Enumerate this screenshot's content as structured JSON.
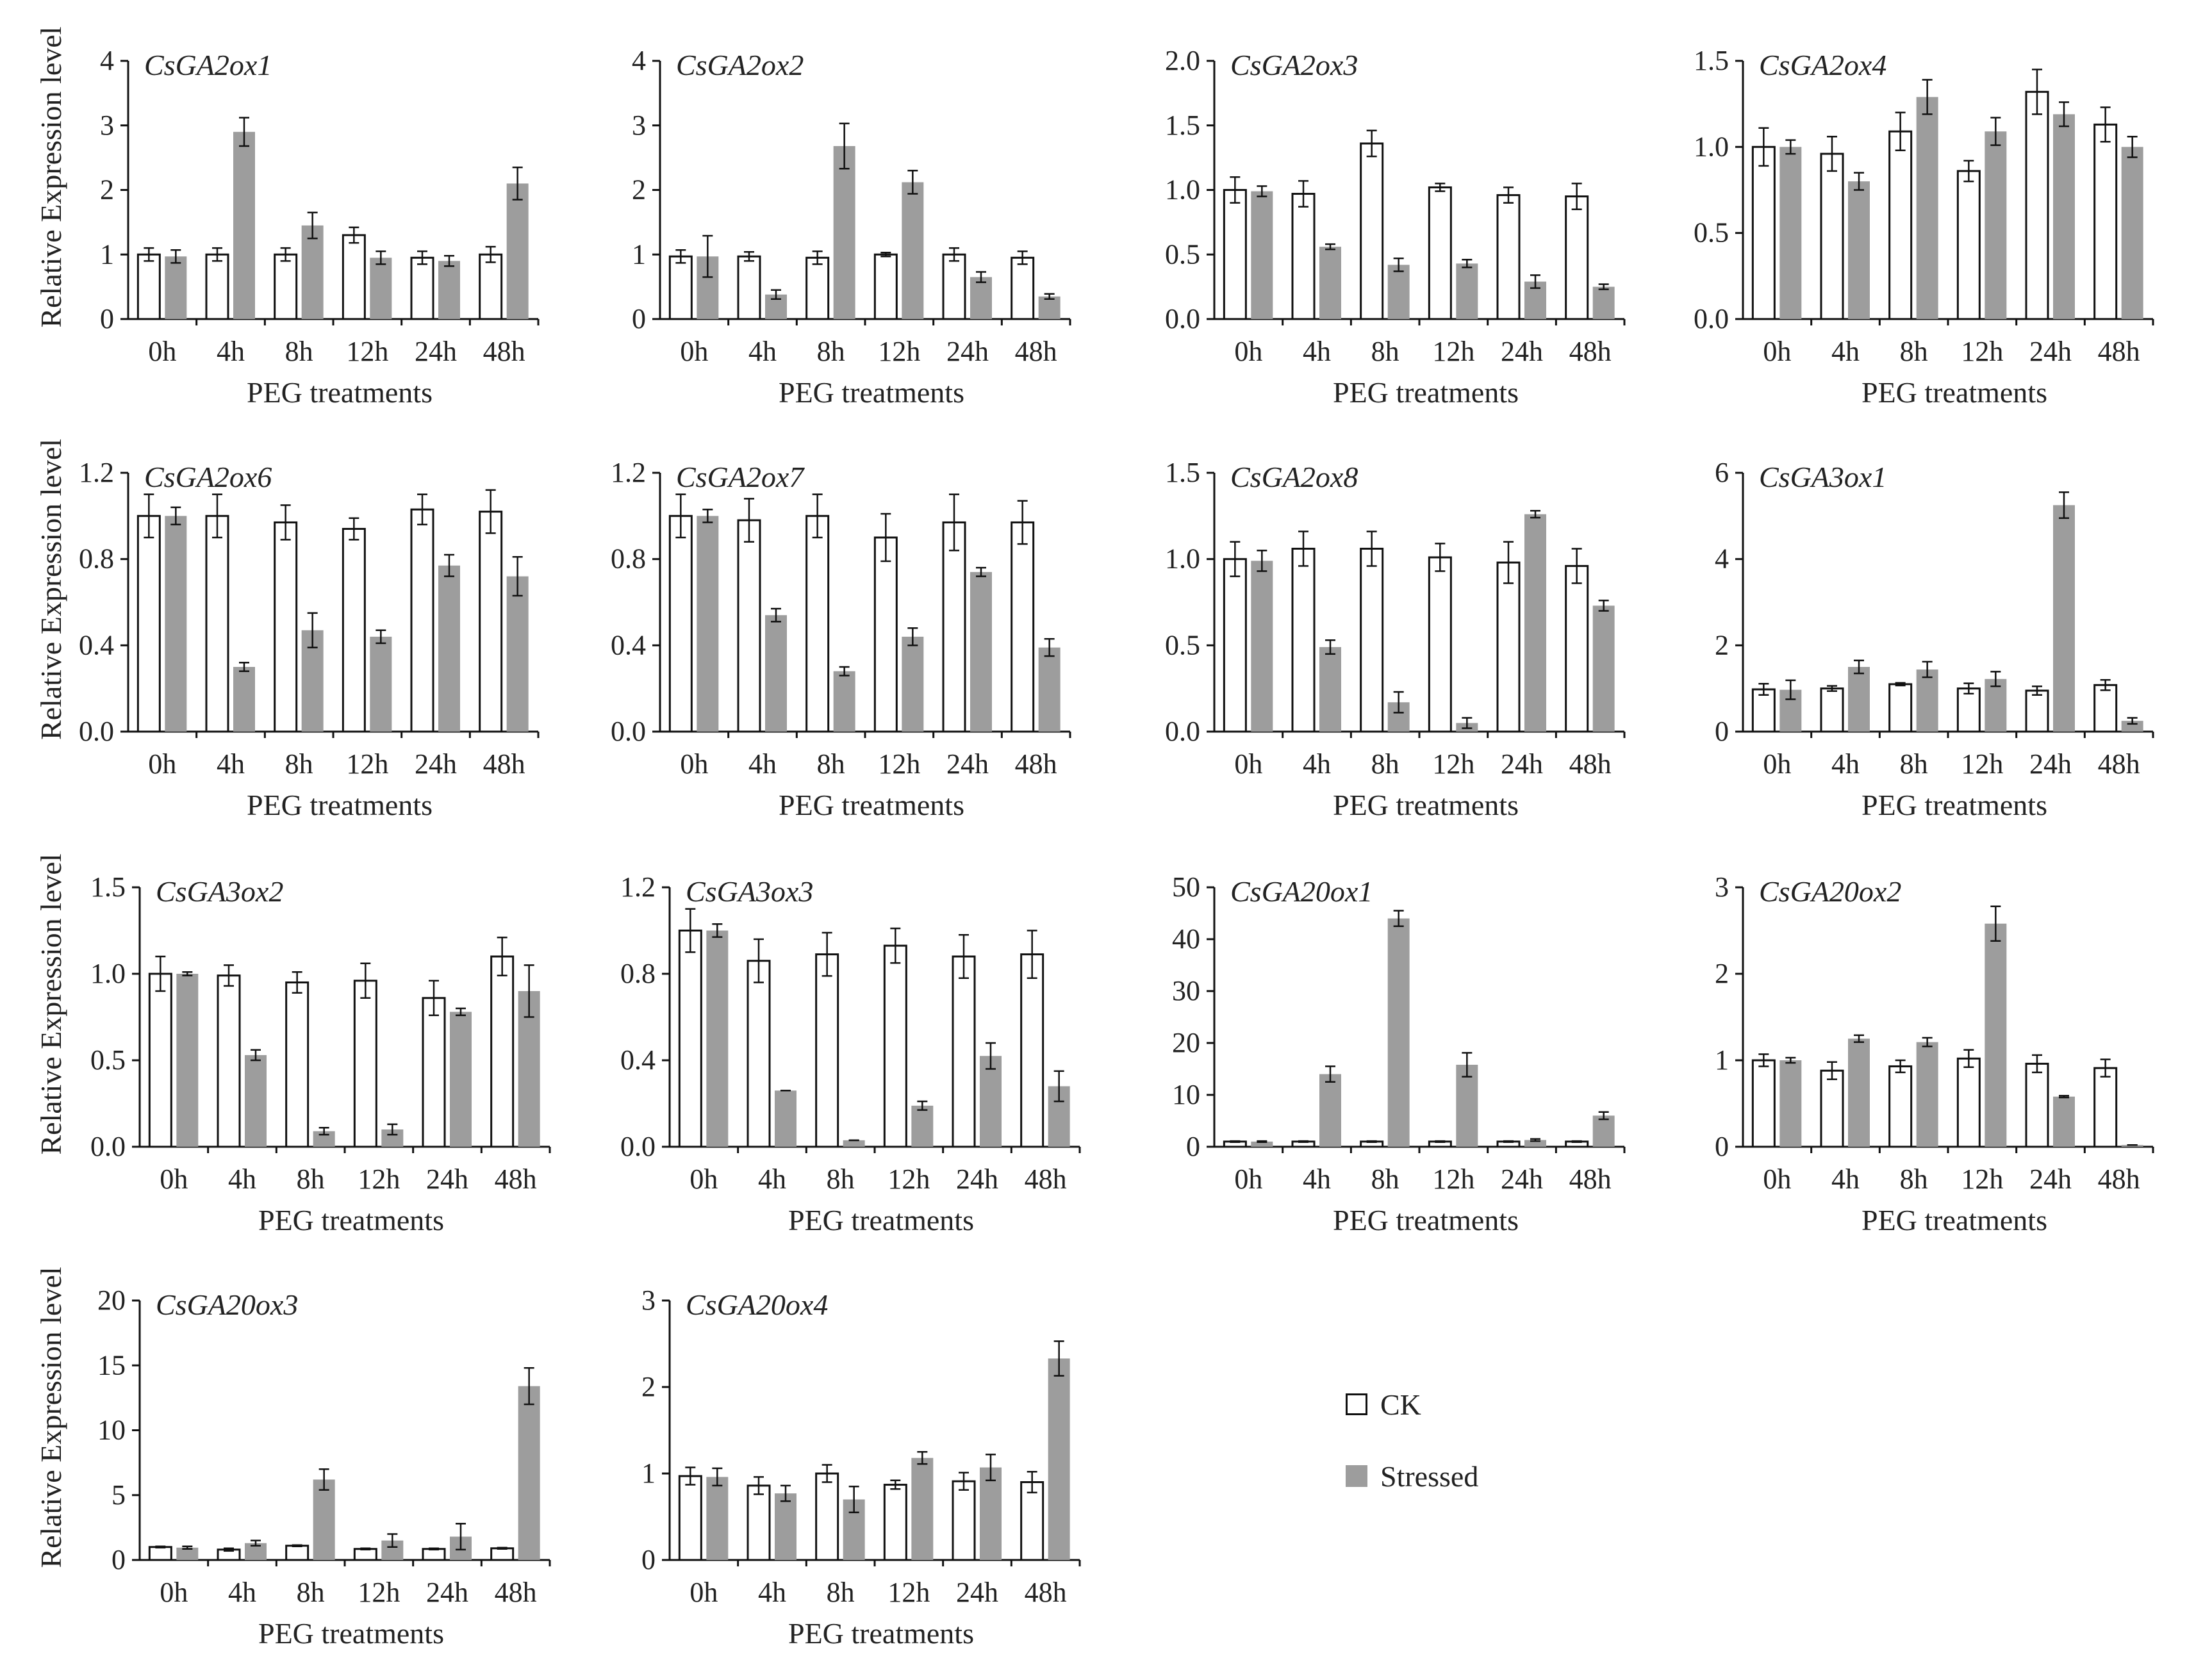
{
  "figure": {
    "ylabel": "Relative Expression level",
    "xlabel": "PEG treatments",
    "categories": [
      "0h",
      "4h",
      "8h",
      "12h",
      "24h",
      "48h"
    ],
    "legend": [
      {
        "name": "CK",
        "fill": "#ffffff",
        "stroke": "#111111"
      },
      {
        "name": "Stressed",
        "fill": "#9d9d9d",
        "stroke": "#9d9d9d"
      }
    ]
  },
  "chart_data": [
    {
      "type": "bar",
      "title": "CsGA2ox1",
      "categories": [
        "0h",
        "4h",
        "8h",
        "12h",
        "24h",
        "48h"
      ],
      "xlabel": "PEG treatments",
      "ylabel": "Relative Expression level",
      "ylim": [
        0,
        4
      ],
      "yticks": [
        "0",
        "1",
        "2",
        "3",
        "4"
      ],
      "series": [
        {
          "name": "CK",
          "values": [
            1.0,
            1.0,
            1.0,
            1.3,
            0.95,
            1.0
          ],
          "errors": [
            0.1,
            0.1,
            0.1,
            0.12,
            0.1,
            0.12
          ]
        },
        {
          "name": "Stressed",
          "values": [
            0.97,
            2.9,
            1.45,
            0.95,
            0.9,
            2.1
          ],
          "errors": [
            0.1,
            0.22,
            0.2,
            0.1,
            0.08,
            0.25
          ]
        }
      ]
    },
    {
      "type": "bar",
      "title": "CsGA2ox2",
      "categories": [
        "0h",
        "4h",
        "8h",
        "12h",
        "24h",
        "48h"
      ],
      "xlabel": "PEG treatments",
      "ylabel": "",
      "ylim": [
        0,
        4
      ],
      "yticks": [
        "0",
        "1",
        "2",
        "3",
        "4"
      ],
      "series": [
        {
          "name": "CK",
          "values": [
            0.97,
            0.97,
            0.95,
            1.0,
            1.0,
            0.95
          ],
          "errors": [
            0.1,
            0.07,
            0.1,
            0.03,
            0.1,
            0.1
          ]
        },
        {
          "name": "Stressed",
          "values": [
            0.97,
            0.38,
            2.68,
            2.12,
            0.65,
            0.35
          ],
          "errors": [
            0.32,
            0.07,
            0.35,
            0.18,
            0.08,
            0.04
          ]
        }
      ]
    },
    {
      "type": "bar",
      "title": "CsGA2ox3",
      "categories": [
        "0h",
        "4h",
        "8h",
        "12h",
        "24h",
        "48h"
      ],
      "xlabel": "PEG treatments",
      "ylabel": "",
      "ylim": [
        0,
        2.0
      ],
      "yticks": [
        "0.0",
        "0.5",
        "1.0",
        "1.5",
        "2.0"
      ],
      "series": [
        {
          "name": "CK",
          "values": [
            1.0,
            0.97,
            1.36,
            1.02,
            0.96,
            0.95
          ],
          "errors": [
            0.1,
            0.1,
            0.1,
            0.03,
            0.06,
            0.1
          ]
        },
        {
          "name": "Stressed",
          "values": [
            0.99,
            0.56,
            0.42,
            0.43,
            0.29,
            0.25
          ],
          "errors": [
            0.04,
            0.02,
            0.05,
            0.03,
            0.05,
            0.02
          ]
        }
      ]
    },
    {
      "type": "bar",
      "title": "CsGA2ox4",
      "categories": [
        "0h",
        "4h",
        "8h",
        "12h",
        "24h",
        "48h"
      ],
      "xlabel": "PEG treatments",
      "ylabel": "",
      "ylim": [
        0,
        1.5
      ],
      "yticks": [
        "0.0",
        "0.5",
        "1.0",
        "1.5"
      ],
      "series": [
        {
          "name": "CK",
          "values": [
            1.0,
            0.96,
            1.09,
            0.86,
            1.32,
            1.13
          ],
          "errors": [
            0.11,
            0.1,
            0.11,
            0.06,
            0.13,
            0.1
          ]
        },
        {
          "name": "Stressed",
          "values": [
            1.0,
            0.8,
            1.29,
            1.09,
            1.19,
            1.0
          ],
          "errors": [
            0.04,
            0.05,
            0.1,
            0.08,
            0.07,
            0.06
          ]
        }
      ]
    },
    {
      "type": "bar",
      "title": "CsGA2ox6",
      "categories": [
        "0h",
        "4h",
        "8h",
        "12h",
        "24h",
        "48h"
      ],
      "xlabel": "PEG treatments",
      "ylabel": "Relative Expression level",
      "ylim": [
        0,
        1.2
      ],
      "yticks": [
        "0.0",
        "0.4",
        "0.8",
        "1.2"
      ],
      "series": [
        {
          "name": "CK",
          "values": [
            1.0,
            1.0,
            0.97,
            0.94,
            1.03,
            1.02
          ],
          "errors": [
            0.1,
            0.1,
            0.08,
            0.05,
            0.07,
            0.1
          ]
        },
        {
          "name": "Stressed",
          "values": [
            1.0,
            0.3,
            0.47,
            0.44,
            0.77,
            0.72
          ],
          "errors": [
            0.04,
            0.02,
            0.08,
            0.03,
            0.05,
            0.09
          ]
        }
      ]
    },
    {
      "type": "bar",
      "title": "CsGA2ox7",
      "categories": [
        "0h",
        "4h",
        "8h",
        "12h",
        "24h",
        "48h"
      ],
      "xlabel": "PEG treatments",
      "ylabel": "",
      "ylim": [
        0,
        1.2
      ],
      "yticks": [
        "0.0",
        "0.4",
        "0.8",
        "1.2"
      ],
      "series": [
        {
          "name": "CK",
          "values": [
            1.0,
            0.98,
            1.0,
            0.9,
            0.97,
            0.97
          ],
          "errors": [
            0.1,
            0.1,
            0.1,
            0.11,
            0.13,
            0.1
          ]
        },
        {
          "name": "Stressed",
          "values": [
            1.0,
            0.54,
            0.28,
            0.44,
            0.74,
            0.39
          ],
          "errors": [
            0.03,
            0.03,
            0.02,
            0.04,
            0.02,
            0.04
          ]
        }
      ]
    },
    {
      "type": "bar",
      "title": "CsGA2ox8",
      "categories": [
        "0h",
        "4h",
        "8h",
        "12h",
        "24h",
        "48h"
      ],
      "xlabel": "PEG treatments",
      "ylabel": "",
      "ylim": [
        0,
        1.5
      ],
      "yticks": [
        "0.0",
        "0.5",
        "1.0",
        "1.5"
      ],
      "series": [
        {
          "name": "CK",
          "values": [
            1.0,
            1.06,
            1.06,
            1.01,
            0.98,
            0.96
          ],
          "errors": [
            0.1,
            0.1,
            0.1,
            0.08,
            0.12,
            0.1
          ]
        },
        {
          "name": "Stressed",
          "values": [
            0.99,
            0.49,
            0.17,
            0.05,
            1.26,
            0.73
          ],
          "errors": [
            0.06,
            0.04,
            0.06,
            0.03,
            0.02,
            0.03
          ]
        }
      ]
    },
    {
      "type": "bar",
      "title": "CsGA3ox1",
      "categories": [
        "0h",
        "4h",
        "8h",
        "12h",
        "24h",
        "48h"
      ],
      "xlabel": "PEG treatments",
      "ylabel": "",
      "ylim": [
        0,
        6
      ],
      "yticks": [
        "0",
        "2",
        "4",
        "6"
      ],
      "series": [
        {
          "name": "CK",
          "values": [
            0.98,
            1.0,
            1.1,
            1.0,
            0.95,
            1.08
          ],
          "errors": [
            0.13,
            0.06,
            0.03,
            0.12,
            0.1,
            0.12
          ]
        },
        {
          "name": "Stressed",
          "values": [
            0.97,
            1.5,
            1.44,
            1.22,
            5.25,
            0.25
          ],
          "errors": [
            0.22,
            0.15,
            0.18,
            0.17,
            0.3,
            0.07
          ]
        }
      ]
    },
    {
      "type": "bar",
      "title": "CsGA3ox2",
      "categories": [
        "0h",
        "4h",
        "8h",
        "12h",
        "24h",
        "48h"
      ],
      "xlabel": "PEG treatments",
      "ylabel": "Relative Expression level",
      "ylim": [
        0,
        1.5
      ],
      "yticks": [
        "0.0",
        "0.5",
        "1.0",
        "1.5"
      ],
      "series": [
        {
          "name": "CK",
          "values": [
            1.0,
            0.99,
            0.95,
            0.96,
            0.86,
            1.1
          ],
          "errors": [
            0.1,
            0.06,
            0.06,
            0.1,
            0.1,
            0.11
          ]
        },
        {
          "name": "Stressed",
          "values": [
            1.0,
            0.53,
            0.09,
            0.1,
            0.78,
            0.9
          ],
          "errors": [
            0.01,
            0.03,
            0.02,
            0.03,
            0.02,
            0.15
          ]
        }
      ]
    },
    {
      "type": "bar",
      "title": "CsGA3ox3",
      "categories": [
        "0h",
        "4h",
        "8h",
        "12h",
        "24h",
        "48h"
      ],
      "xlabel": "PEG treatments",
      "ylabel": "",
      "ylim": [
        0,
        1.2
      ],
      "yticks": [
        "0.0",
        "0.4",
        "0.8",
        "1.2"
      ],
      "series": [
        {
          "name": "CK",
          "values": [
            1.0,
            0.86,
            0.89,
            0.93,
            0.88,
            0.89
          ],
          "errors": [
            0.1,
            0.1,
            0.1,
            0.08,
            0.1,
            0.11
          ]
        },
        {
          "name": "Stressed",
          "values": [
            1.0,
            0.26,
            0.03,
            0.19,
            0.42,
            0.28
          ],
          "errors": [
            0.03,
            0.0,
            0.0,
            0.02,
            0.06,
            0.07
          ]
        }
      ]
    },
    {
      "type": "bar",
      "title": "CsGA20ox1",
      "categories": [
        "0h",
        "4h",
        "8h",
        "12h",
        "24h",
        "48h"
      ],
      "xlabel": "PEG treatments",
      "ylabel": "",
      "ylim": [
        0,
        50
      ],
      "yticks": [
        "0",
        "10",
        "20",
        "30",
        "40",
        "50"
      ],
      "series": [
        {
          "name": "CK",
          "values": [
            1.0,
            1.0,
            1.0,
            1.0,
            1.0,
            1.0
          ],
          "errors": [
            0.1,
            0.1,
            0.1,
            0.1,
            0.1,
            0.1
          ]
        },
        {
          "name": "Stressed",
          "values": [
            1.0,
            14.0,
            44.0,
            15.8,
            1.3,
            6.0
          ],
          "errors": [
            0.1,
            1.5,
            1.5,
            2.3,
            0.2,
            0.7
          ]
        }
      ]
    },
    {
      "type": "bar",
      "title": "CsGA20ox2",
      "categories": [
        "0h",
        "4h",
        "8h",
        "12h",
        "24h",
        "48h"
      ],
      "xlabel": "PEG treatments",
      "ylabel": "",
      "ylim": [
        0,
        3
      ],
      "yticks": [
        "0",
        "1",
        "2",
        "3"
      ],
      "series": [
        {
          "name": "CK",
          "values": [
            1.0,
            0.88,
            0.93,
            1.02,
            0.96,
            0.91
          ],
          "errors": [
            0.07,
            0.1,
            0.07,
            0.1,
            0.1,
            0.1
          ]
        },
        {
          "name": "Stressed",
          "values": [
            1.0,
            1.25,
            1.21,
            2.58,
            0.58,
            0.02
          ],
          "errors": [
            0.03,
            0.04,
            0.05,
            0.2,
            0.01,
            0.0
          ]
        }
      ]
    },
    {
      "type": "bar",
      "title": "CsGA20ox3",
      "categories": [
        "0h",
        "4h",
        "8h",
        "12h",
        "24h",
        "48h"
      ],
      "xlabel": "PEG treatments",
      "ylabel": "Relative Expression level",
      "ylim": [
        0,
        20
      ],
      "yticks": [
        "0",
        "5",
        "10",
        "15",
        "20"
      ],
      "series": [
        {
          "name": "CK",
          "values": [
            1.0,
            0.8,
            1.1,
            0.85,
            0.85,
            0.9
          ],
          "errors": [
            0.05,
            0.1,
            0.05,
            0.05,
            0.05,
            0.05
          ]
        },
        {
          "name": "Stressed",
          "values": [
            0.95,
            1.3,
            6.2,
            1.5,
            1.8,
            13.4
          ],
          "errors": [
            0.1,
            0.2,
            0.8,
            0.5,
            1.0,
            1.4
          ]
        }
      ]
    },
    {
      "type": "bar",
      "title": "CsGA20ox4",
      "categories": [
        "0h",
        "4h",
        "8h",
        "12h",
        "24h",
        "48h"
      ],
      "xlabel": "PEG treatments",
      "ylabel": "",
      "ylim": [
        0,
        3
      ],
      "yticks": [
        "0",
        "1",
        "2",
        "3"
      ],
      "series": [
        {
          "name": "CK",
          "values": [
            0.97,
            0.86,
            1.0,
            0.87,
            0.91,
            0.9
          ],
          "errors": [
            0.1,
            0.1,
            0.1,
            0.05,
            0.1,
            0.12
          ]
        },
        {
          "name": "Stressed",
          "values": [
            0.96,
            0.77,
            0.7,
            1.18,
            1.07,
            2.33
          ],
          "errors": [
            0.1,
            0.09,
            0.15,
            0.07,
            0.15,
            0.2
          ]
        }
      ]
    }
  ]
}
